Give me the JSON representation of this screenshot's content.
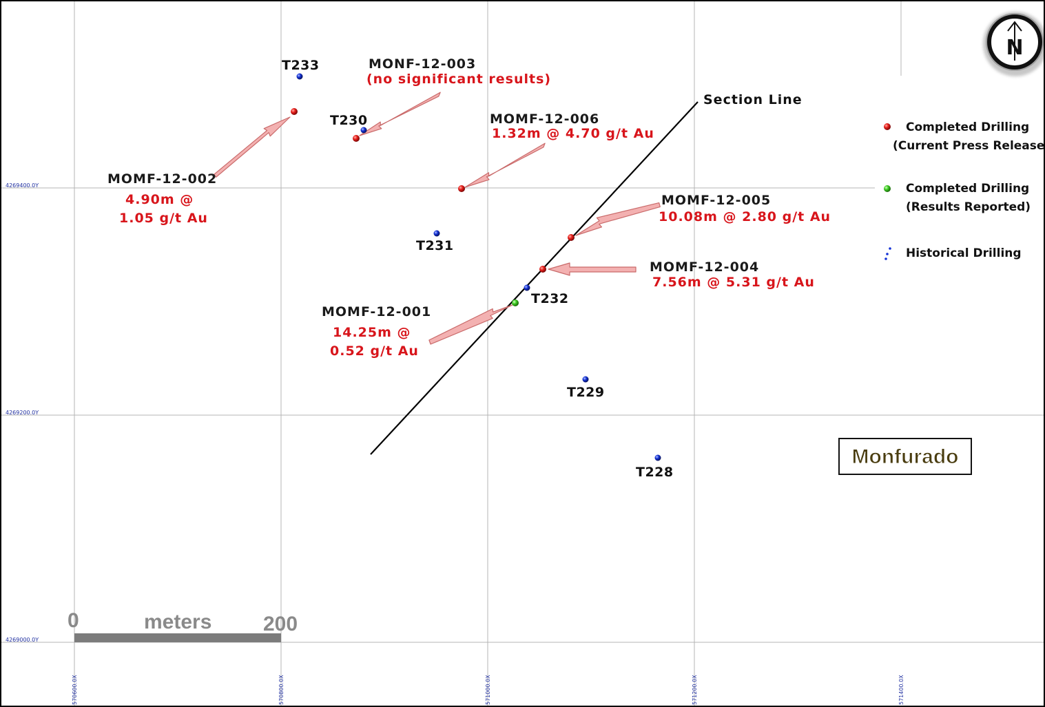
{
  "map": {
    "title": "Monfurado",
    "section_line_label": "Section Line",
    "north_arrow_letter": "N",
    "grid": {
      "northings": [
        "4269400.0Y",
        "4269200.0Y",
        "4269000.0Y"
      ],
      "eastings": [
        "570600.0X",
        "570800.0X",
        "571000.0X",
        "571200.0X",
        "571400.0X"
      ]
    },
    "scale_bar": {
      "start_label": "0",
      "units_label": "meters",
      "end_label": "200"
    },
    "historical_holes": [
      "T233",
      "T230",
      "T231",
      "T232",
      "T229",
      "T228"
    ],
    "drill_results": [
      {
        "hole": "MOMF-12-002",
        "line1": "4.90m @",
        "line2": "1.05 g/t Au"
      },
      {
        "hole": "MONF-12-003",
        "line1": "(no significant results)"
      },
      {
        "hole": "MOMF-12-006",
        "line1": "1.32m @ 4.70 g/t Au"
      },
      {
        "hole": "MOMF-12-005",
        "line1": "10.08m @ 2.80 g/t Au"
      },
      {
        "hole": "MOMF-12-004",
        "line1": "7.56m @ 5.31 g/t Au"
      },
      {
        "hole": "MOMF-12-001",
        "line1": "14.25m @",
        "line2": "0.52 g/t Au"
      }
    ],
    "legend": [
      {
        "line1": "Completed Drilling",
        "line2": "(Current Press Release)",
        "color": "#e8201c"
      },
      {
        "line1": "Completed Drilling",
        "line2": "(Results Reported)",
        "color": "#3fce24"
      },
      {
        "line1": "Historical Drilling",
        "color": "#1432d6"
      }
    ],
    "colors": {
      "red_dot": "#e8201c",
      "green_dot": "#3fce24",
      "blue_dot": "#1432d6",
      "result_text": "#d8151b",
      "arrow_fill": "#f3b1b1",
      "arrow_stroke": "#c96a6a"
    }
  }
}
